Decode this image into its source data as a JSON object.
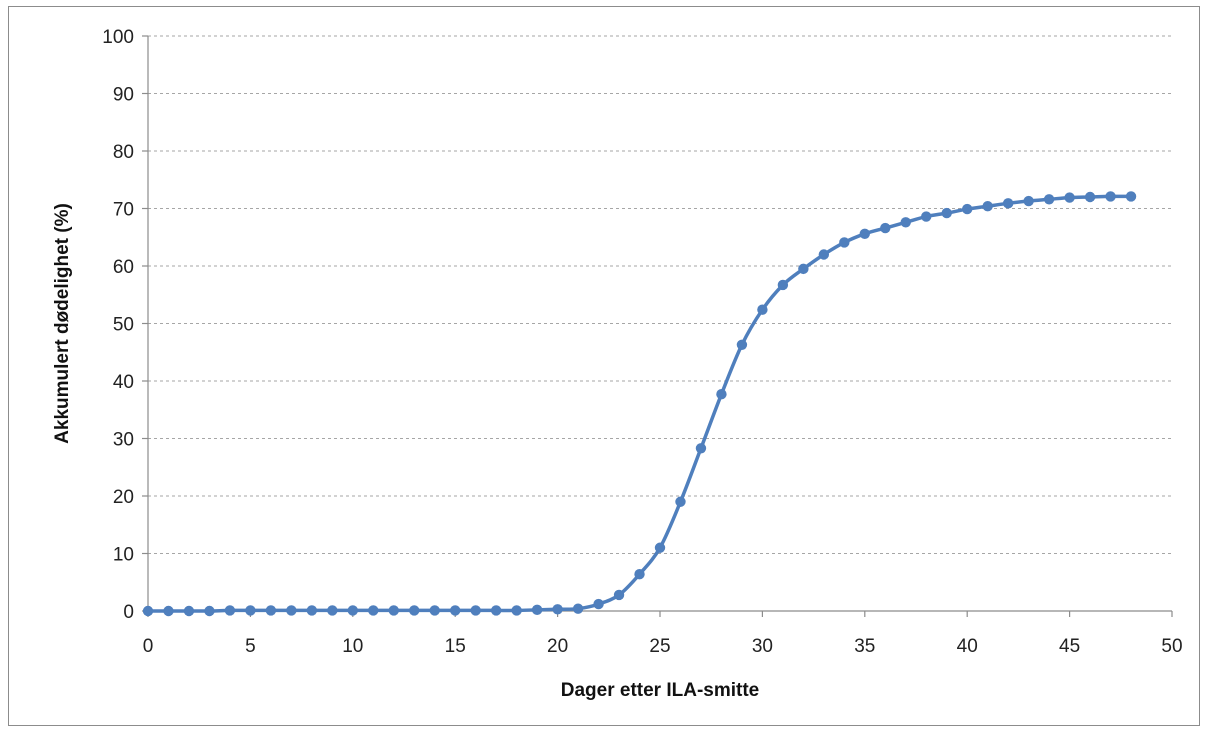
{
  "chart_data": {
    "type": "line",
    "title": "",
    "xlabel": "Dager etter ILA-smitte",
    "ylabel": "Akkumulert dødelighet (%)",
    "xlim": [
      0,
      50
    ],
    "ylim": [
      0,
      100
    ],
    "xticks": [
      0,
      5,
      10,
      15,
      20,
      25,
      30,
      35,
      40,
      45,
      50
    ],
    "yticks": [
      0,
      10,
      20,
      30,
      40,
      50,
      60,
      70,
      80,
      90,
      100
    ],
    "grid": "horizontal-dashed",
    "legend": "none",
    "line_color": "#4f7fbd",
    "series": [
      {
        "x": [
          0,
          1,
          2,
          3,
          4,
          5,
          6,
          7,
          8,
          9,
          10,
          11,
          12,
          13,
          14,
          15,
          16,
          17,
          18,
          19,
          20,
          21,
          22,
          23,
          24,
          25,
          26,
          27,
          28,
          29,
          30,
          31,
          32,
          33,
          34,
          35,
          36,
          37,
          38,
          39,
          40,
          41,
          42,
          43,
          44,
          45,
          46,
          47,
          48
        ],
        "y": [
          0,
          0,
          0,
          0,
          0.1,
          0.1,
          0.1,
          0.1,
          0.1,
          0.1,
          0.1,
          0.1,
          0.1,
          0.1,
          0.1,
          0.1,
          0.1,
          0.1,
          0.1,
          0.2,
          0.3,
          0.4,
          1.2,
          2.8,
          6.4,
          11,
          19,
          28.3,
          37.7,
          46.3,
          52.4,
          56.7,
          59.5,
          62,
          64.1,
          65.6,
          66.6,
          67.6,
          68.6,
          69.2,
          69.9,
          70.4,
          70.9,
          71.3,
          71.6,
          71.9,
          72,
          72.1,
          72.1
        ]
      }
    ]
  }
}
